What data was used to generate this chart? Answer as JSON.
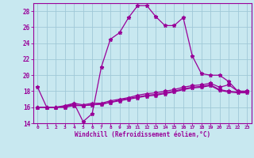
{
  "xlabel": "Windchill (Refroidissement éolien,°C)",
  "x": [
    0,
    1,
    2,
    3,
    4,
    5,
    6,
    7,
    8,
    9,
    10,
    11,
    12,
    13,
    14,
    15,
    16,
    17,
    18,
    19,
    20,
    21,
    22,
    23
  ],
  "line1": [
    18.5,
    16.0,
    16.0,
    16.0,
    16.5,
    14.2,
    15.2,
    21.0,
    24.5,
    25.3,
    27.2,
    28.7,
    28.7,
    27.3,
    26.2,
    26.2,
    27.2,
    22.4,
    20.2,
    20.0,
    20.0,
    19.2,
    18.0,
    18.0
  ],
  "line2": [
    16.0,
    16.0,
    16.0,
    16.2,
    16.5,
    16.3,
    16.5,
    16.5,
    16.8,
    17.0,
    17.2,
    17.5,
    17.7,
    17.8,
    18.0,
    18.2,
    18.5,
    18.7,
    18.8,
    19.0,
    18.5,
    18.8,
    18.0,
    18.0
  ],
  "line3": [
    16.0,
    16.0,
    16.0,
    16.0,
    16.2,
    16.2,
    16.3,
    16.4,
    16.6,
    16.8,
    17.0,
    17.2,
    17.4,
    17.5,
    17.7,
    17.9,
    18.2,
    18.4,
    18.5,
    18.7,
    18.1,
    17.9,
    17.8,
    17.8
  ],
  "line4": [
    16.0,
    16.0,
    16.0,
    16.1,
    16.3,
    16.2,
    16.3,
    16.4,
    16.6,
    16.9,
    17.1,
    17.3,
    17.5,
    17.6,
    17.8,
    18.0,
    18.3,
    18.5,
    18.6,
    18.8,
    18.2,
    18.0,
    17.9,
    17.9
  ],
  "line_color": "#990099",
  "bg_color": "#c8e8f0",
  "grid_color": "#a0c8d8",
  "ylim": [
    14,
    29
  ],
  "yticks": [
    14,
    16,
    18,
    20,
    22,
    24,
    26,
    28
  ],
  "xlim": [
    -0.5,
    23.5
  ],
  "xticks": [
    0,
    1,
    2,
    3,
    4,
    5,
    6,
    7,
    8,
    9,
    10,
    11,
    12,
    13,
    14,
    15,
    16,
    17,
    18,
    19,
    20,
    21,
    22,
    23
  ]
}
